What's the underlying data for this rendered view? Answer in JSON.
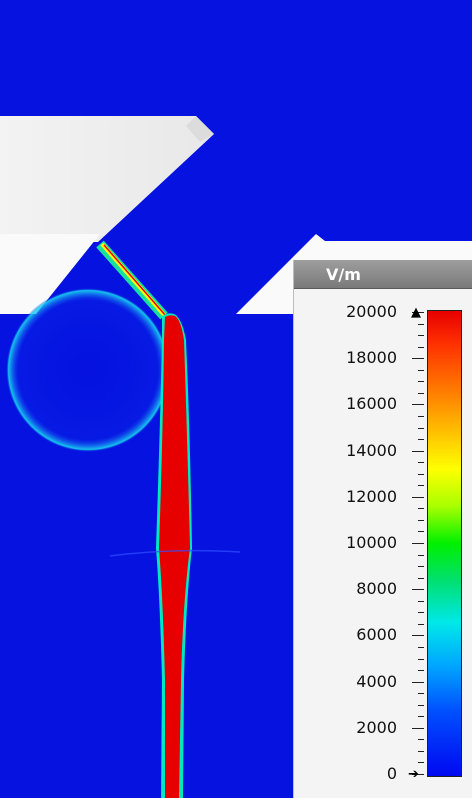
{
  "colors": {
    "background": "#0512e0",
    "geometry": "#f2f2f2",
    "high_field": "#e60000"
  },
  "legend": {
    "unit": "V/m",
    "ticks": [
      "20000",
      "18000",
      "16000",
      "14000",
      "12000",
      "10000",
      "8000",
      "6000",
      "4000",
      "2000",
      "0"
    ],
    "max_handle_icon": "triangle-up-icon",
    "min_handle_icon": "arrow-right-icon"
  }
}
